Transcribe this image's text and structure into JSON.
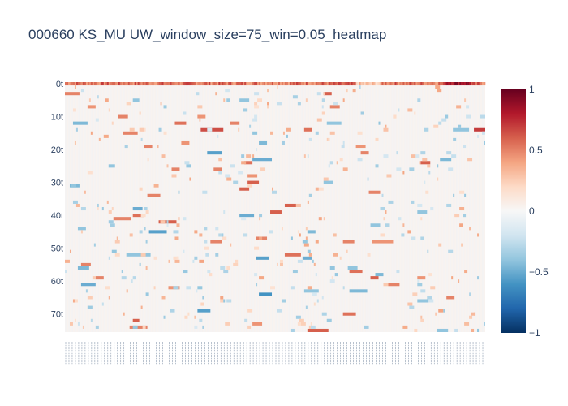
{
  "chart_data": {
    "type": "heatmap",
    "title": "000660 KS_MU UW_window_size=75_win=0.05_heatmap",
    "xlabel": "",
    "ylabel": "",
    "rows": 76,
    "cols": 260,
    "y_tick_labels": [
      "0t",
      "10t",
      "20t",
      "30t",
      "40t",
      "50t",
      "60t",
      "70t"
    ],
    "y_tick_rows": [
      0,
      10,
      20,
      30,
      40,
      50,
      60,
      70
    ],
    "zlim": [
      -1,
      1
    ],
    "colorbar_ticks": [
      1,
      0.5,
      0,
      -0.5,
      -1
    ],
    "colorbar_tick_labels": [
      "1",
      "0.5",
      "0",
      "−0.5",
      "−1"
    ],
    "colorscale": [
      "#053061",
      "#2166ac",
      "#4393c3",
      "#92c5de",
      "#d1e5f0",
      "#f7f7f7",
      "#fddbc7",
      "#f4a582",
      "#d6604d",
      "#b2182b",
      "#67001f"
    ],
    "background_value": 0.03,
    "row0_pattern": "row 0 values mostly 0.4–0.9 across all columns",
    "segments": [
      {
        "r": 0,
        "c0": 0,
        "c1": 259,
        "v": 0.55
      },
      {
        "r": 0,
        "c0": 180,
        "c1": 195,
        "v": 0.25
      },
      {
        "r": 0,
        "c0": 235,
        "c1": 250,
        "v": 0.9
      },
      {
        "r": 3,
        "c0": 0,
        "c1": 8,
        "v": 0.5
      },
      {
        "r": 3,
        "c0": 160,
        "c1": 164,
        "v": 0.6
      },
      {
        "r": 5,
        "c0": 42,
        "c1": 45,
        "v": -0.4
      },
      {
        "r": 5,
        "c0": 108,
        "c1": 113,
        "v": -0.4
      },
      {
        "r": 7,
        "c0": 14,
        "c1": 18,
        "v": 0.45
      },
      {
        "r": 7,
        "c0": 164,
        "c1": 169,
        "v": 0.5
      },
      {
        "r": 10,
        "c0": 33,
        "c1": 38,
        "v": 0.5
      },
      {
        "r": 10,
        "c0": 82,
        "c1": 86,
        "v": 0.45
      },
      {
        "r": 12,
        "c0": 5,
        "c1": 13,
        "v": -0.45
      },
      {
        "r": 12,
        "c0": 68,
        "c1": 74,
        "v": 0.55
      },
      {
        "r": 12,
        "c0": 102,
        "c1": 107,
        "v": 0.5
      },
      {
        "r": 12,
        "c0": 162,
        "c1": 170,
        "v": -0.4
      },
      {
        "r": 14,
        "c0": 84,
        "c1": 97,
        "v": 0.65
      },
      {
        "r": 14,
        "c0": 148,
        "c1": 152,
        "v": 0.55
      },
      {
        "r": 14,
        "c0": 240,
        "c1": 249,
        "v": -0.4
      },
      {
        "r": 14,
        "c0": 253,
        "c1": 259,
        "v": 0.7
      },
      {
        "r": 15,
        "c0": 36,
        "c1": 44,
        "v": 0.5
      },
      {
        "r": 18,
        "c0": 72,
        "c1": 76,
        "v": 0.45
      },
      {
        "r": 18,
        "c0": 120,
        "c1": 124,
        "v": -0.45
      },
      {
        "r": 19,
        "c0": 49,
        "c1": 53,
        "v": 0.5
      },
      {
        "r": 19,
        "c0": 180,
        "c1": 185,
        "v": 0.45
      },
      {
        "r": 21,
        "c0": 88,
        "c1": 96,
        "v": -0.55
      },
      {
        "r": 21,
        "c0": 183,
        "c1": 187,
        "v": 0.5
      },
      {
        "r": 23,
        "c0": 116,
        "c1": 127,
        "v": -0.5
      },
      {
        "r": 23,
        "c0": 232,
        "c1": 238,
        "v": -0.45
      },
      {
        "r": 24,
        "c0": 111,
        "c1": 115,
        "v": 0.55
      },
      {
        "r": 24,
        "c0": 220,
        "c1": 225,
        "v": 0.6
      },
      {
        "r": 25,
        "c0": 27,
        "c1": 30,
        "v": -0.4
      },
      {
        "r": 26,
        "c0": 66,
        "c1": 70,
        "v": 0.5
      },
      {
        "r": 26,
        "c0": 92,
        "c1": 96,
        "v": 0.5
      },
      {
        "r": 28,
        "c0": 113,
        "c1": 118,
        "v": 0.45
      },
      {
        "r": 30,
        "c0": 113,
        "c1": 119,
        "v": 0.6
      },
      {
        "r": 30,
        "c0": 160,
        "c1": 165,
        "v": -0.4
      },
      {
        "r": 31,
        "c0": 3,
        "c1": 8,
        "v": -0.45
      },
      {
        "r": 32,
        "c0": 108,
        "c1": 113,
        "v": 0.6
      },
      {
        "r": 33,
        "c0": 188,
        "c1": 194,
        "v": 0.5
      },
      {
        "r": 34,
        "c0": 51,
        "c1": 58,
        "v": 0.5
      },
      {
        "r": 37,
        "c0": 136,
        "c1": 142,
        "v": 0.6
      },
      {
        "r": 38,
        "c0": 42,
        "c1": 47,
        "v": -0.5
      },
      {
        "r": 39,
        "c0": 127,
        "c1": 133,
        "v": 0.6
      },
      {
        "r": 39,
        "c0": 218,
        "c1": 223,
        "v": -0.4
      },
      {
        "r": 40,
        "c0": 42,
        "c1": 48,
        "v": 0.55
      },
      {
        "r": 40,
        "c0": 108,
        "c1": 116,
        "v": -0.5
      },
      {
        "r": 41,
        "c0": 30,
        "c1": 40,
        "v": 0.5
      },
      {
        "r": 42,
        "c0": 58,
        "c1": 68,
        "v": 0.6
      },
      {
        "r": 43,
        "c0": 189,
        "c1": 194,
        "v": -0.4
      },
      {
        "r": 44,
        "c0": 8,
        "c1": 12,
        "v": -0.4
      },
      {
        "r": 45,
        "c0": 52,
        "c1": 62,
        "v": -0.55
      },
      {
        "r": 45,
        "c0": 150,
        "c1": 154,
        "v": -0.45
      },
      {
        "r": 47,
        "c0": 118,
        "c1": 124,
        "v": 0.5
      },
      {
        "r": 48,
        "c0": 172,
        "c1": 178,
        "v": 0.5
      },
      {
        "r": 48,
        "c0": 190,
        "c1": 202,
        "v": 0.45
      },
      {
        "r": 48,
        "c0": 90,
        "c1": 96,
        "v": 0.5
      },
      {
        "r": 52,
        "c0": 38,
        "c1": 52,
        "v": -0.4
      },
      {
        "r": 52,
        "c0": 136,
        "c1": 145,
        "v": 0.55
      },
      {
        "r": 53,
        "c0": 118,
        "c1": 125,
        "v": -0.55
      },
      {
        "r": 53,
        "c0": 147,
        "c1": 152,
        "v": -0.5
      },
      {
        "r": 55,
        "c0": 10,
        "c1": 15,
        "v": 0.5
      },
      {
        "r": 56,
        "c0": 8,
        "c1": 14,
        "v": -0.45
      },
      {
        "r": 56,
        "c0": 175,
        "c1": 180,
        "v": -0.4
      },
      {
        "r": 57,
        "c0": 176,
        "c1": 183,
        "v": 0.55
      },
      {
        "r": 58,
        "c0": 192,
        "c1": 196,
        "v": -0.45
      },
      {
        "r": 59,
        "c0": 19,
        "c1": 23,
        "v": 0.5
      },
      {
        "r": 59,
        "c0": 189,
        "c1": 193,
        "v": 0.6
      },
      {
        "r": 59,
        "c0": 218,
        "c1": 222,
        "v": 0.45
      },
      {
        "r": 61,
        "c0": 10,
        "c1": 18,
        "v": -0.5
      },
      {
        "r": 61,
        "c0": 200,
        "c1": 206,
        "v": 0.5
      },
      {
        "r": 62,
        "c0": 64,
        "c1": 70,
        "v": 0.45
      },
      {
        "r": 63,
        "c0": 148,
        "c1": 156,
        "v": -0.4
      },
      {
        "r": 63,
        "c0": 176,
        "c1": 186,
        "v": -0.45
      },
      {
        "r": 64,
        "c0": 120,
        "c1": 127,
        "v": -0.6
      },
      {
        "r": 65,
        "c0": 236,
        "c1": 240,
        "v": 0.5
      },
      {
        "r": 66,
        "c0": 218,
        "c1": 224,
        "v": -0.4
      },
      {
        "r": 69,
        "c0": 82,
        "c1": 89,
        "v": -0.55
      },
      {
        "r": 70,
        "c0": 172,
        "c1": 179,
        "v": 0.55
      },
      {
        "r": 72,
        "c0": 42,
        "c1": 45,
        "v": 0.6
      },
      {
        "r": 73,
        "c0": 116,
        "c1": 121,
        "v": 0.45
      },
      {
        "r": 74,
        "c0": 40,
        "c1": 50,
        "v": 0.5
      },
      {
        "r": 75,
        "c0": 150,
        "c1": 162,
        "v": 0.6
      },
      {
        "r": 75,
        "c0": 230,
        "c1": 236,
        "v": -0.4
      }
    ],
    "sparse_note": "remaining cells near 0 with scattered short light-blue/orange runs"
  }
}
